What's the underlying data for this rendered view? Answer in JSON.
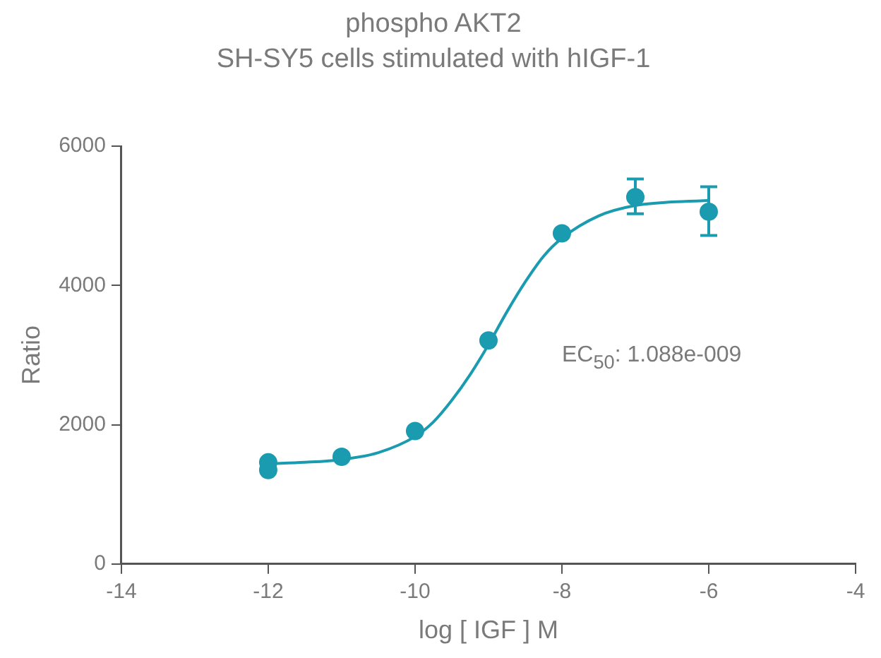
{
  "chart_data": {
    "type": "scatter",
    "title": "phospho AKT2",
    "subtitle": "SH-SY5 cells stimulated with hIGF-1",
    "xlabel": "log [ IGF ] M",
    "ylabel": "Ratio",
    "annotations": [
      "EC$_{50}$: 1.088e-009"
    ],
    "xlim": [
      -14,
      -4
    ],
    "xticks": [
      -14,
      -12,
      -10,
      -8,
      -6,
      -4
    ],
    "ylim": [
      0,
      6000
    ],
    "yticks": [
      0,
      2000,
      4000,
      6000
    ],
    "grid": false,
    "marker": "circle",
    "series": [
      {
        "color": "#1a9bb0",
        "x": [
          -12,
          -12,
          -11,
          -10,
          -9,
          -8,
          -7,
          -6
        ],
        "values": [
          1460,
          1350,
          1540,
          1910,
          3210,
          4750,
          5270,
          5060
        ],
        "errors": [
          null,
          null,
          null,
          null,
          null,
          null,
          [
            5030,
            5530
          ],
          [
            4720,
            5420
          ]
        ]
      },
      {
        "type": "line",
        "color": "#1a9bb0",
        "marker": "none",
        "x": [
          -12,
          -11.5,
          -11,
          -10.5,
          -10,
          -9.75,
          -9.5,
          -9.25,
          -9,
          -8.75,
          -8.5,
          -8.25,
          -8,
          -7.5,
          -7,
          -6.5,
          -6
        ],
        "values": [
          1440,
          1460,
          1500,
          1600,
          1830,
          2040,
          2350,
          2720,
          3150,
          3620,
          4050,
          4420,
          4680,
          5000,
          5150,
          5200,
          5220
        ]
      }
    ]
  }
}
